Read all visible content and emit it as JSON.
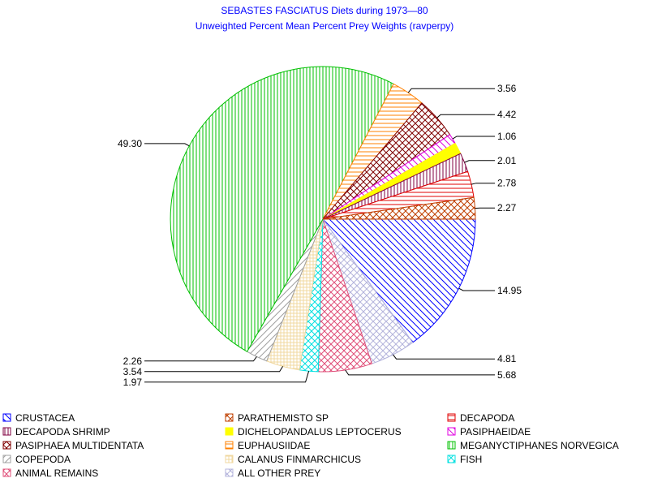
{
  "chart_data": {
    "type": "pie",
    "title": "SEBASTES FASCIATUS Diets during 1973—80",
    "subtitle": "Unweighted Percent Mean Percent Prey  Weights (ravperpy)",
    "slices": [
      {
        "name": "CRUSTACEA",
        "value": 14.95,
        "label": "14.95",
        "color": "#0000ff",
        "pattern": "diag-down"
      },
      {
        "name": "ALL OTHER PREY",
        "value": 4.81,
        "label": "4.81",
        "color": "#b4b4dc",
        "pattern": "crosshatch-diag"
      },
      {
        "name": "ANIMAL REMAINS",
        "value": 5.68,
        "label": "5.68",
        "color": "#e0507a",
        "pattern": "crosshatch-diag"
      },
      {
        "name": "FISH",
        "value": 1.97,
        "label": "1.97",
        "color": "#00e0e0",
        "pattern": "crosshatch-diag"
      },
      {
        "name": "CALANUS FINMARCHICUS",
        "value": 3.54,
        "label": "3.54",
        "color": "#f0d8a0",
        "pattern": "grid"
      },
      {
        "name": "COPEPODA",
        "value": 2.26,
        "label": "2.26",
        "color": "#a0a0a0",
        "pattern": "diag-up"
      },
      {
        "name": "MEGANYCTIPHANES NORVEGICA",
        "value": 49.3,
        "label": "49.30",
        "color": "#00c000",
        "pattern": "vertical"
      },
      {
        "name": "EUPHAUSIIDAE",
        "value": 3.56,
        "label": "3.56",
        "color": "#ff8000",
        "pattern": "horizontal"
      },
      {
        "name": "PASIPHAEA MULTIDENTATA",
        "value": 4.42,
        "label": "4.42",
        "color": "#800000",
        "pattern": "crosshatch-diag"
      },
      {
        "name": "PASIPHAEIDAE",
        "value": 1.06,
        "label": "1.06",
        "color": "#e000e0",
        "pattern": "diag-down"
      },
      {
        "name": "DICHELOPANDALUS LEPTOCERUS",
        "value": 1.2,
        "label": "",
        "color": "#ffff00",
        "pattern": "solid"
      },
      {
        "name": "DECAPODA SHRIMP",
        "value": 2.01,
        "label": "2.01",
        "color": "#800040",
        "pattern": "vertical"
      },
      {
        "name": "DECAPODA",
        "value": 2.78,
        "label": "2.78",
        "color": "#e00000",
        "pattern": "horizontal"
      },
      {
        "name": "PARATHEMISTO SP",
        "value": 2.27,
        "label": "2.27",
        "color": "#c04000",
        "pattern": "crosshatch-diag"
      }
    ],
    "legend": {
      "placement": "bottom",
      "columns": 3,
      "items": [
        "CRUSTACEA",
        "PARATHEMISTO SP",
        "DECAPODA",
        "DECAPODA SHRIMP",
        "DICHELOPANDALUS LEPTOCERUS",
        "PASIPHAEIDAE",
        "PASIPHAEA MULTIDENTATA",
        "EUPHAUSIIDAE",
        "MEGANYCTIPHANES NORVEGICA",
        "COPEPODA",
        "CALANUS FINMARCHICUS",
        "FISH",
        "ANIMAL REMAINS",
        "ALL OTHER PREY"
      ]
    }
  }
}
